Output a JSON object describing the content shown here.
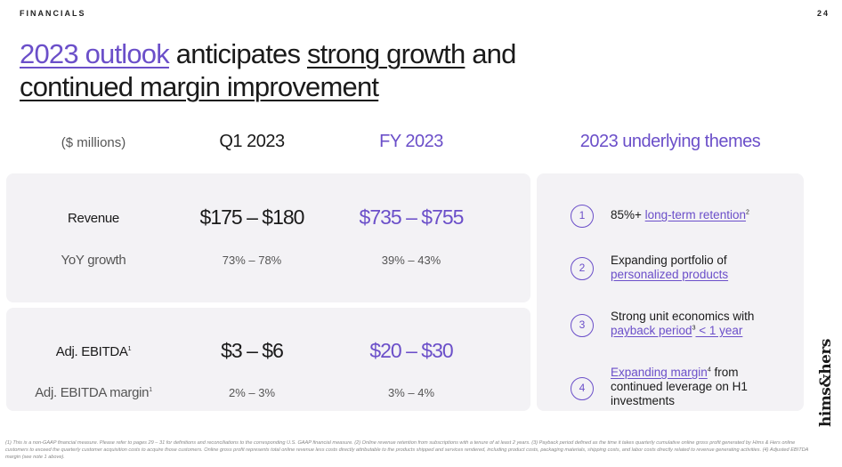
{
  "header": {
    "section_label": "FINANCIALS",
    "page_number": "24"
  },
  "headline": {
    "part1": "2023 outlook",
    "part2": " anticipates ",
    "part3": "strong growth",
    "part4": " and",
    "part5": "continued margin improvement"
  },
  "table": {
    "units_label": "($ millions)",
    "col_q1": "Q1 2023",
    "col_fy": "FY 2023",
    "revenue": {
      "label": "Revenue",
      "q1": "$175 – $180",
      "fy": "$735 – $755"
    },
    "yoy": {
      "label": "YoY growth",
      "q1": "73% – 78%",
      "fy": "39% – 43%"
    },
    "ebitda": {
      "label": "Adj. EBITDA",
      "sup": "1",
      "q1": "$3 – $6",
      "fy": "$20 – $30"
    },
    "ebitda_margin": {
      "label": "Adj. EBITDA margin",
      "sup": "1",
      "q1": "2% – 3%",
      "fy": "3% – 4%"
    }
  },
  "themes": {
    "title": "2023 underlying themes",
    "items": [
      {
        "num": "1",
        "pre": "85%+ ",
        "link": "long-term retention",
        "sup": "2",
        "post": ""
      },
      {
        "num": "2",
        "pre": "Expanding portfolio of ",
        "link": "personalized products",
        "sup": "",
        "post": ""
      },
      {
        "num": "3",
        "pre": "Strong unit economics with ",
        "link": "payback period",
        "sup": "3",
        "post": " < 1 year"
      },
      {
        "num": "4",
        "pre": "",
        "link": "Expanding margin",
        "sup": "4",
        "post": " from continued leverage on H1 investments"
      }
    ]
  },
  "brand": "hims&hers",
  "footnote": "(1) This is a non-GAAP financial measure. Please refer to pages 29 – 31 for definitions and reconciliations to the corresponding U.S. GAAP financial measure. (2) Online revenue retention from subscriptions with a tenure of at least 2 years. (3) Payback period defined as the time it takes quarterly cumulative online gross profit generated by Hims & Hers online customers to exceed the quarterly customer acquisition costs to acquire those customers. Online gross profit represents total online revenue less costs directly attributable to the products shipped and services rendered, including product costs, packaging materials, shipping costs, and labor costs directly related to revenue generating activities. (4) Adjusted EBITDA margin (see note 1 above)."
}
